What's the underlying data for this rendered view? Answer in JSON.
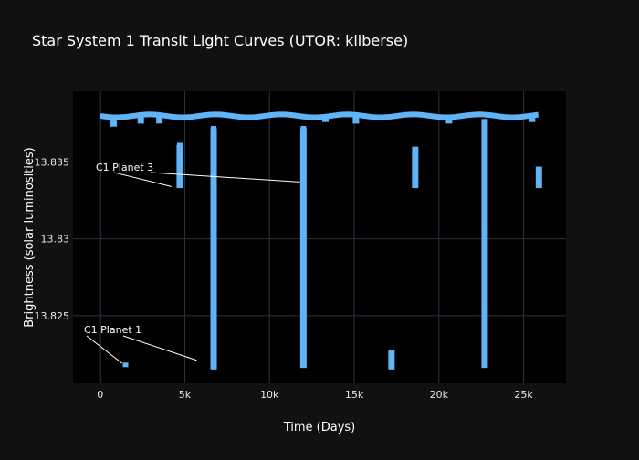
{
  "colors": {
    "page_bg": "#111111",
    "plot_bg": "#000000",
    "grid": "#283442",
    "marker": "#5fb3f7",
    "text": "#ffffff",
    "annotation_line": "#ffffff"
  },
  "chart_data": {
    "type": "scatter",
    "title": "Star System 1 Transit Light Curves (UTOR: kliberse)",
    "xlabel": "Time (Days)",
    "ylabel": "Brightness (solar luminosities)",
    "xlim": [
      -1600,
      27500
    ],
    "ylim": [
      13.8206,
      13.8396
    ],
    "x_ticks": [
      {
        "value": 0,
        "label": "0"
      },
      {
        "value": 5000,
        "label": "5k"
      },
      {
        "value": 10000,
        "label": "10k"
      },
      {
        "value": 15000,
        "label": "15k"
      },
      {
        "value": 20000,
        "label": "20k"
      },
      {
        "value": 25000,
        "label": "25k"
      }
    ],
    "y_ticks": [
      {
        "value": 13.825,
        "label": "13.825"
      },
      {
        "value": 13.83,
        "label": "13.83"
      },
      {
        "value": 13.835,
        "label": "13.835"
      }
    ],
    "grid": true,
    "legend": false,
    "series": [
      {
        "baseline": {
          "x_start": 0,
          "x_end": 25900,
          "y": 13.838
        },
        "transit_dips": [
          {
            "x": 800,
            "y_min": 13.8373,
            "y_max": 13.838
          },
          {
            "x": 2400,
            "y_min": 13.8375,
            "y_max": 13.838
          },
          {
            "x": 3500,
            "y_min": 13.8375,
            "y_max": 13.838
          },
          {
            "x": 4700,
            "y_min": 13.8333,
            "y_max": 13.8361
          },
          {
            "x": 6700,
            "y_min": 13.8215,
            "y_max": 13.8372
          },
          {
            "x": 12000,
            "y_min": 13.8216,
            "y_max": 13.8372
          },
          {
            "x": 13300,
            "y_min": 13.8376,
            "y_max": 13.838
          },
          {
            "x": 15100,
            "y_min": 13.8375,
            "y_max": 13.838
          },
          {
            "x": 17200,
            "y_min": 13.8215,
            "y_max": 13.8228
          },
          {
            "x": 18600,
            "y_min": 13.8333,
            "y_max": 13.836
          },
          {
            "x": 20600,
            "y_min": 13.8375,
            "y_max": 13.838
          },
          {
            "x": 22700,
            "y_min": 13.8216,
            "y_max": 13.8378
          },
          {
            "x": 25500,
            "y_min": 13.8376,
            "y_max": 13.838
          },
          {
            "x": 25900,
            "y_min": 13.8333,
            "y_max": 13.8347
          }
        ],
        "isolated_points": [
          {
            "x": 1500,
            "y": 13.8218
          },
          {
            "x": 4700,
            "y": 13.8361
          },
          {
            "x": 6700,
            "y": 13.8372
          },
          {
            "x": 6700,
            "y": 13.8298
          },
          {
            "x": 6700,
            "y": 13.8263
          },
          {
            "x": 6700,
            "y": 13.8253
          },
          {
            "x": 6700,
            "y": 13.8243
          },
          {
            "x": 12000,
            "y": 13.8372
          },
          {
            "x": 12000,
            "y": 13.8363
          },
          {
            "x": 12000,
            "y": 13.8348
          },
          {
            "x": 12000,
            "y": 13.8337
          },
          {
            "x": 12000,
            "y": 13.8325
          },
          {
            "x": 12000,
            "y": 13.8306
          },
          {
            "x": 12000,
            "y": 13.8289
          },
          {
            "x": 12000,
            "y": 13.8279
          },
          {
            "x": 22700,
            "y": 13.8372
          },
          {
            "x": 22700,
            "y": 13.8365
          },
          {
            "x": 22700,
            "y": 13.8357
          },
          {
            "x": 22700,
            "y": 13.8341
          },
          {
            "x": 22700,
            "y": 13.8323
          },
          {
            "x": 22700,
            "y": 13.8307
          },
          {
            "x": 22700,
            "y": 13.8292
          },
          {
            "x": 22700,
            "y": 13.8279
          }
        ]
      }
    ],
    "annotations": [
      {
        "text": "C1 Planet 3",
        "targets": [
          {
            "x": 4200,
            "y": 13.8334
          },
          {
            "x": 11800,
            "y": 13.8337
          }
        ]
      },
      {
        "text": "C1 Planet 1",
        "targets": [
          {
            "x": 1300,
            "y": 13.8219
          },
          {
            "x": 5700,
            "y": 13.8221
          }
        ]
      }
    ]
  }
}
